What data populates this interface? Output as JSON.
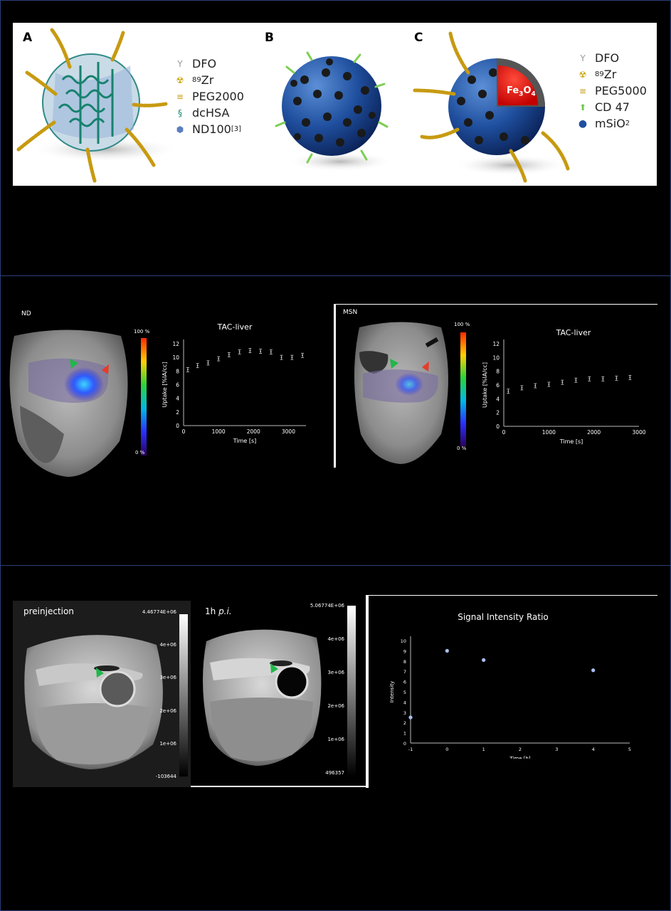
{
  "panel_a": {
    "label": "A",
    "legend": [
      {
        "icon": "dfo-icon",
        "text": "DFO"
      },
      {
        "icon": "zr89-icon",
        "sup": "89",
        "text": "Zr"
      },
      {
        "icon": "peg-icon",
        "text": "PEG2000"
      },
      {
        "icon": "dchsa-icon",
        "text": "dcHSA"
      },
      {
        "icon": "nd100-icon",
        "text": "ND100",
        "ref": "[3]"
      }
    ]
  },
  "panel_b": {
    "label": "B"
  },
  "panel_c": {
    "label": "C",
    "core_label_main": "Fe",
    "core_sub1": "3",
    "core_mid": "O",
    "core_sub2": "4",
    "legend": [
      {
        "icon": "dfo-icon",
        "text": "DFO"
      },
      {
        "icon": "zr89-icon",
        "sup": "89",
        "text": "Zr"
      },
      {
        "icon": "peg-icon",
        "text": "PEG5000"
      },
      {
        "icon": "cd47-icon",
        "text": "CD 47"
      },
      {
        "icon": "msio2-icon",
        "text": "mSiO",
        "sub": "2"
      }
    ]
  },
  "pet_nd": {
    "label": "ND",
    "scale_top": "100 %",
    "scale_bottom": "0 %"
  },
  "pet_msn": {
    "label": "MSN",
    "scale_top": "100 %",
    "scale_bottom": "0 %"
  },
  "mri": {
    "pre_label": "preinjection",
    "pre_scale": [
      "4.46774E+06",
      "4e+06",
      "3e+06",
      "2e+06",
      "1e+06",
      "-103644"
    ],
    "post_label_main": "1h ",
    "post_label_italic": "p.i.",
    "post_scale": [
      "5.06774E+06",
      "4e+06",
      "3e+06",
      "2e+06",
      "1e+06",
      "496357"
    ]
  },
  "chart_data": [
    {
      "type": "scatter",
      "title": "TAC-liver",
      "xlabel": "Time [s]",
      "ylabel": "Uptake [%IA/cc]",
      "xlim": [
        0,
        3500
      ],
      "ylim": [
        0,
        12
      ],
      "xticks": [
        0,
        1000,
        2000,
        3000
      ],
      "yticks": [
        0,
        2,
        4,
        6,
        8,
        10,
        12
      ],
      "x": [
        120,
        400,
        700,
        1000,
        1300,
        1600,
        1900,
        2200,
        2500,
        2800,
        3100,
        3400
      ],
      "y": [
        8.2,
        8.8,
        9.2,
        9.8,
        10.4,
        10.8,
        11.0,
        10.9,
        10.8,
        10.0,
        10.0,
        10.3
      ]
    },
    {
      "type": "scatter",
      "title": "TAC-liver",
      "xlabel": "Time [s]",
      "ylabel": "Uptake [%IA/cc]",
      "xlim": [
        0,
        3000
      ],
      "ylim": [
        0,
        12
      ],
      "xticks": [
        0,
        1000,
        2000,
        3000
      ],
      "yticks": [
        0,
        2,
        4,
        6,
        8,
        10,
        12
      ],
      "x": [
        100,
        400,
        700,
        1000,
        1300,
        1600,
        1900,
        2200,
        2500,
        2800
      ],
      "y": [
        5.1,
        5.6,
        5.9,
        6.1,
        6.4,
        6.7,
        6.9,
        6.9,
        7.0,
        7.1
      ]
    },
    {
      "type": "scatter",
      "title": "Signal Intensity Ratio",
      "xlabel": "Time [h]",
      "ylabel": "Intensity",
      "xlim": [
        -1,
        5
      ],
      "ylim": [
        0,
        10
      ],
      "xticks": [
        -1,
        0,
        1,
        2,
        3,
        4,
        5
      ],
      "yticks": [
        0,
        1,
        2,
        3,
        4,
        5,
        6,
        7,
        8,
        9,
        10
      ],
      "x": [
        -1,
        0,
        1,
        4
      ],
      "y": [
        2.5,
        9.0,
        8.1,
        7.1
      ],
      "point_color": "#a9bff0"
    }
  ]
}
